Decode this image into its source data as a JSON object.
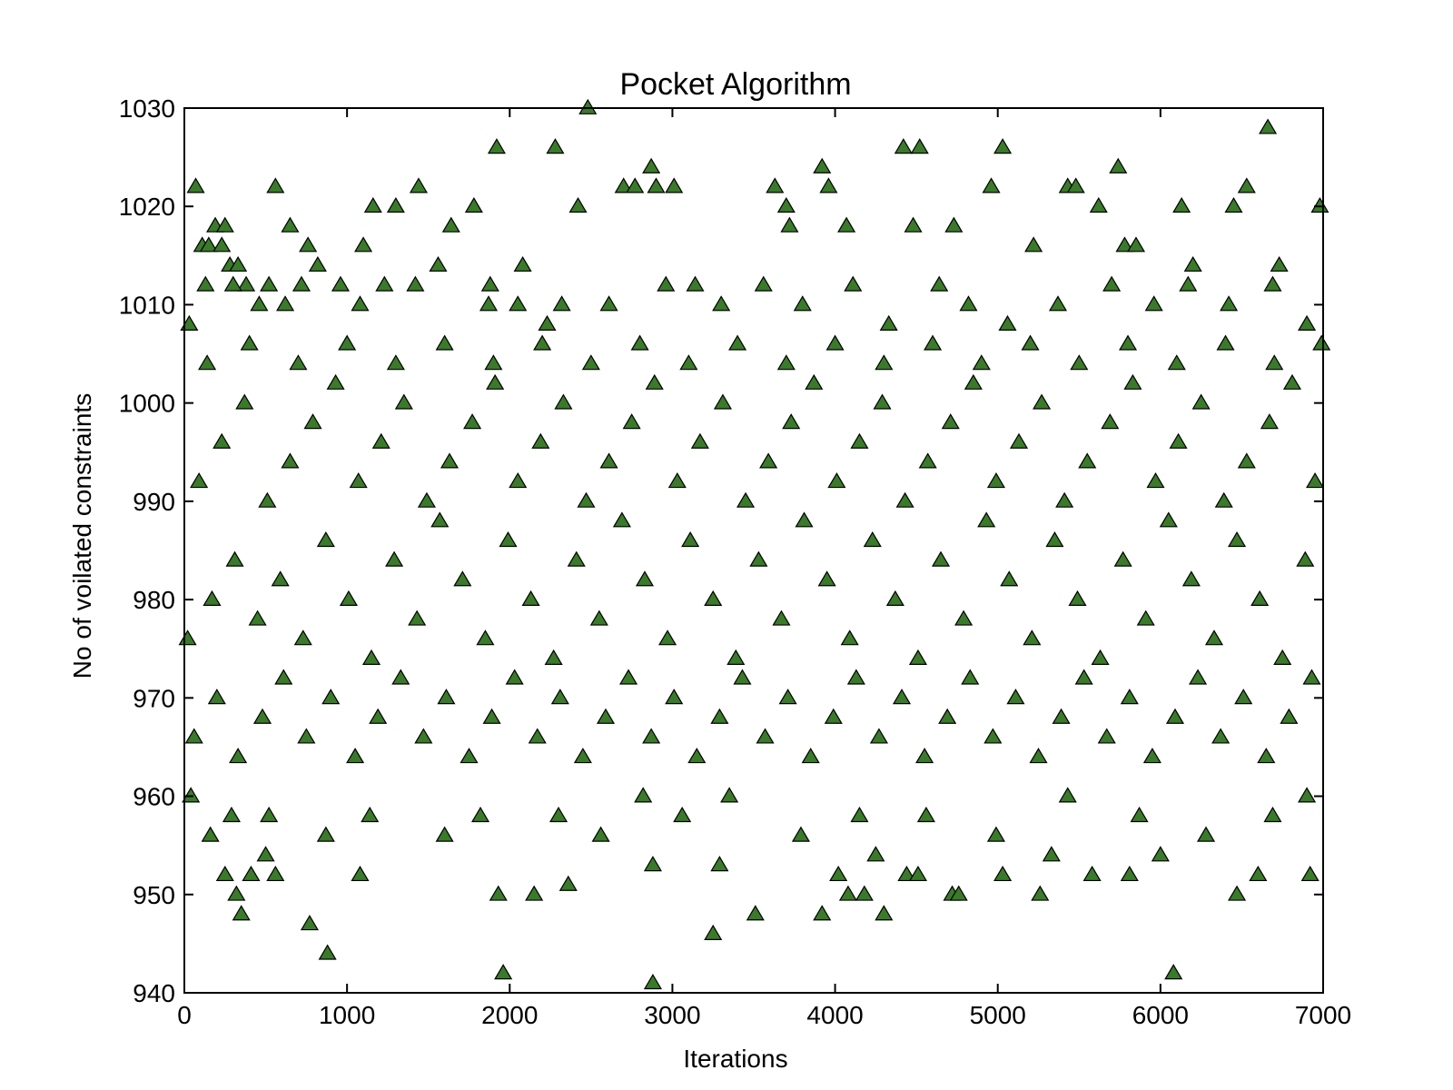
{
  "chart_data": {
    "type": "scatter",
    "title": "Pocket Algorithm",
    "xlabel": "Iterations",
    "ylabel": "No of voilated constraints",
    "xlim": [
      0,
      7000
    ],
    "ylim": [
      940,
      1030
    ],
    "xticks": [
      0,
      1000,
      2000,
      3000,
      4000,
      5000,
      6000,
      7000
    ],
    "yticks": [
      940,
      950,
      960,
      970,
      980,
      990,
      1000,
      1010,
      1020,
      1030
    ],
    "grid": false,
    "legend": "none",
    "marker": "triangle",
    "marker_color": "#3a7a2a",
    "marker_edge_color": "#000000",
    "series": [
      {
        "name": "",
        "points": [
          [
            70,
            1022
          ],
          [
            110,
            1016
          ],
          [
            150,
            1016
          ],
          [
            190,
            1018
          ],
          [
            230,
            1016
          ],
          [
            250,
            1018
          ],
          [
            280,
            1014
          ],
          [
            330,
            1014
          ],
          [
            380,
            1012
          ],
          [
            560,
            1022
          ],
          [
            650,
            1018
          ],
          [
            760,
            1016
          ],
          [
            1100,
            1016
          ],
          [
            1160,
            1020
          ],
          [
            1300,
            1020
          ],
          [
            1440,
            1022
          ],
          [
            1640,
            1018
          ],
          [
            1780,
            1020
          ],
          [
            1880,
            1012
          ],
          [
            1920,
            1026
          ],
          [
            2080,
            1014
          ],
          [
            2280,
            1026
          ],
          [
            2420,
            1020
          ],
          [
            2480,
            1030
          ],
          [
            2700,
            1022
          ],
          [
            2770,
            1022
          ],
          [
            2870,
            1024
          ],
          [
            2900,
            1022
          ],
          [
            3010,
            1022
          ],
          [
            3630,
            1022
          ],
          [
            3700,
            1020
          ],
          [
            3720,
            1018
          ],
          [
            3920,
            1024
          ],
          [
            3960,
            1022
          ],
          [
            4070,
            1018
          ],
          [
            4420,
            1026
          ],
          [
            4480,
            1018
          ],
          [
            4520,
            1026
          ],
          [
            4730,
            1018
          ],
          [
            4960,
            1022
          ],
          [
            5030,
            1026
          ],
          [
            5220,
            1016
          ],
          [
            5430,
            1022
          ],
          [
            5480,
            1022
          ],
          [
            5620,
            1020
          ],
          [
            5740,
            1024
          ],
          [
            5780,
            1016
          ],
          [
            5850,
            1016
          ],
          [
            6130,
            1020
          ],
          [
            6200,
            1014
          ],
          [
            6450,
            1020
          ],
          [
            6530,
            1022
          ],
          [
            6660,
            1028
          ],
          [
            6730,
            1014
          ],
          [
            6980,
            1020
          ],
          [
            30,
            1008
          ],
          [
            130,
            1012
          ],
          [
            300,
            1012
          ],
          [
            460,
            1010
          ],
          [
            520,
            1012
          ],
          [
            620,
            1010
          ],
          [
            720,
            1012
          ],
          [
            820,
            1014
          ],
          [
            960,
            1012
          ],
          [
            1080,
            1010
          ],
          [
            1230,
            1012
          ],
          [
            1420,
            1012
          ],
          [
            1560,
            1014
          ],
          [
            1870,
            1010
          ],
          [
            2050,
            1010
          ],
          [
            2230,
            1008
          ],
          [
            2320,
            1010
          ],
          [
            2610,
            1010
          ],
          [
            2960,
            1012
          ],
          [
            3140,
            1012
          ],
          [
            3300,
            1010
          ],
          [
            3560,
            1012
          ],
          [
            3800,
            1010
          ],
          [
            4110,
            1012
          ],
          [
            4330,
            1008
          ],
          [
            4640,
            1012
          ],
          [
            4820,
            1010
          ],
          [
            5060,
            1008
          ],
          [
            5370,
            1010
          ],
          [
            5700,
            1012
          ],
          [
            5960,
            1010
          ],
          [
            6170,
            1012
          ],
          [
            6420,
            1010
          ],
          [
            6690,
            1012
          ],
          [
            6900,
            1008
          ],
          [
            250,
            952
          ],
          [
            320,
            950
          ],
          [
            350,
            948
          ],
          [
            410,
            952
          ],
          [
            500,
            954
          ],
          [
            560,
            952
          ],
          [
            770,
            947
          ],
          [
            880,
            944
          ],
          [
            1080,
            952
          ],
          [
            1930,
            950
          ],
          [
            1960,
            942
          ],
          [
            2150,
            950
          ],
          [
            2360,
            951
          ],
          [
            2880,
            941
          ],
          [
            2880,
            953
          ],
          [
            3250,
            946
          ],
          [
            3290,
            953
          ],
          [
            3510,
            948
          ],
          [
            3920,
            948
          ],
          [
            4020,
            952
          ],
          [
            4080,
            950
          ],
          [
            4180,
            950
          ],
          [
            4250,
            954
          ],
          [
            4300,
            948
          ],
          [
            4440,
            952
          ],
          [
            4510,
            952
          ],
          [
            4720,
            950
          ],
          [
            4760,
            950
          ],
          [
            5030,
            952
          ],
          [
            5260,
            950
          ],
          [
            5330,
            954
          ],
          [
            5580,
            952
          ],
          [
            5810,
            952
          ],
          [
            6000,
            954
          ],
          [
            6080,
            942
          ],
          [
            6470,
            950
          ],
          [
            6600,
            952
          ],
          [
            6920,
            952
          ],
          [
            40,
            960
          ],
          [
            160,
            956
          ],
          [
            290,
            958
          ],
          [
            520,
            958
          ],
          [
            870,
            956
          ],
          [
            1140,
            958
          ],
          [
            1600,
            956
          ],
          [
            1820,
            958
          ],
          [
            2300,
            958
          ],
          [
            2560,
            956
          ],
          [
            2820,
            960
          ],
          [
            3060,
            958
          ],
          [
            3350,
            960
          ],
          [
            3790,
            956
          ],
          [
            4150,
            958
          ],
          [
            4560,
            958
          ],
          [
            4990,
            956
          ],
          [
            5430,
            960
          ],
          [
            5870,
            958
          ],
          [
            6280,
            956
          ],
          [
            6690,
            958
          ],
          [
            6900,
            960
          ],
          [
            60,
            966
          ],
          [
            200,
            970
          ],
          [
            330,
            964
          ],
          [
            480,
            968
          ],
          [
            610,
            972
          ],
          [
            750,
            966
          ],
          [
            900,
            970
          ],
          [
            1050,
            964
          ],
          [
            1190,
            968
          ],
          [
            1330,
            972
          ],
          [
            1470,
            966
          ],
          [
            1610,
            970
          ],
          [
            1750,
            964
          ],
          [
            1890,
            968
          ],
          [
            2030,
            972
          ],
          [
            2170,
            966
          ],
          [
            2310,
            970
          ],
          [
            2450,
            964
          ],
          [
            2590,
            968
          ],
          [
            2730,
            972
          ],
          [
            2870,
            966
          ],
          [
            3010,
            970
          ],
          [
            3150,
            964
          ],
          [
            3290,
            968
          ],
          [
            3430,
            972
          ],
          [
            3570,
            966
          ],
          [
            3710,
            970
          ],
          [
            3850,
            964
          ],
          [
            3990,
            968
          ],
          [
            4130,
            972
          ],
          [
            4270,
            966
          ],
          [
            4410,
            970
          ],
          [
            4550,
            964
          ],
          [
            4690,
            968
          ],
          [
            4830,
            972
          ],
          [
            4970,
            966
          ],
          [
            5110,
            970
          ],
          [
            5250,
            964
          ],
          [
            5390,
            968
          ],
          [
            5530,
            972
          ],
          [
            5670,
            966
          ],
          [
            5810,
            970
          ],
          [
            5950,
            964
          ],
          [
            6090,
            968
          ],
          [
            6230,
            972
          ],
          [
            6370,
            966
          ],
          [
            6510,
            970
          ],
          [
            6650,
            964
          ],
          [
            6790,
            968
          ],
          [
            6930,
            972
          ],
          [
            20,
            976
          ],
          [
            170,
            980
          ],
          [
            310,
            984
          ],
          [
            450,
            978
          ],
          [
            590,
            982
          ],
          [
            730,
            976
          ],
          [
            870,
            986
          ],
          [
            1010,
            980
          ],
          [
            1150,
            974
          ],
          [
            1290,
            984
          ],
          [
            1430,
            978
          ],
          [
            1570,
            988
          ],
          [
            1710,
            982
          ],
          [
            1850,
            976
          ],
          [
            1990,
            986
          ],
          [
            2130,
            980
          ],
          [
            2270,
            974
          ],
          [
            2410,
            984
          ],
          [
            2550,
            978
          ],
          [
            2690,
            988
          ],
          [
            2830,
            982
          ],
          [
            2970,
            976
          ],
          [
            3110,
            986
          ],
          [
            3250,
            980
          ],
          [
            3390,
            974
          ],
          [
            3530,
            984
          ],
          [
            3670,
            978
          ],
          [
            3810,
            988
          ],
          [
            3950,
            982
          ],
          [
            4090,
            976
          ],
          [
            4230,
            986
          ],
          [
            4370,
            980
          ],
          [
            4510,
            974
          ],
          [
            4650,
            984
          ],
          [
            4790,
            978
          ],
          [
            4930,
            988
          ],
          [
            5070,
            982
          ],
          [
            5210,
            976
          ],
          [
            5350,
            986
          ],
          [
            5490,
            980
          ],
          [
            5630,
            974
          ],
          [
            5770,
            984
          ],
          [
            5910,
            978
          ],
          [
            6050,
            988
          ],
          [
            6190,
            982
          ],
          [
            6330,
            976
          ],
          [
            6470,
            986
          ],
          [
            6610,
            980
          ],
          [
            6750,
            974
          ],
          [
            6890,
            984
          ],
          [
            90,
            992
          ],
          [
            230,
            996
          ],
          [
            370,
            1000
          ],
          [
            510,
            990
          ],
          [
            650,
            994
          ],
          [
            790,
            998
          ],
          [
            930,
            1002
          ],
          [
            1070,
            992
          ],
          [
            1210,
            996
          ],
          [
            1350,
            1000
          ],
          [
            1490,
            990
          ],
          [
            1630,
            994
          ],
          [
            1770,
            998
          ],
          [
            1910,
            1002
          ],
          [
            2050,
            992
          ],
          [
            2190,
            996
          ],
          [
            2330,
            1000
          ],
          [
            2470,
            990
          ],
          [
            2610,
            994
          ],
          [
            2750,
            998
          ],
          [
            2890,
            1002
          ],
          [
            3030,
            992
          ],
          [
            3170,
            996
          ],
          [
            3310,
            1000
          ],
          [
            3450,
            990
          ],
          [
            3590,
            994
          ],
          [
            3730,
            998
          ],
          [
            3870,
            1002
          ],
          [
            4010,
            992
          ],
          [
            4150,
            996
          ],
          [
            4290,
            1000
          ],
          [
            4430,
            990
          ],
          [
            4570,
            994
          ],
          [
            4710,
            998
          ],
          [
            4850,
            1002
          ],
          [
            4990,
            992
          ],
          [
            5130,
            996
          ],
          [
            5270,
            1000
          ],
          [
            5410,
            990
          ],
          [
            5550,
            994
          ],
          [
            5690,
            998
          ],
          [
            5830,
            1002
          ],
          [
            5970,
            992
          ],
          [
            6110,
            996
          ],
          [
            6250,
            1000
          ],
          [
            6390,
            990
          ],
          [
            6530,
            994
          ],
          [
            6670,
            998
          ],
          [
            6810,
            1002
          ],
          [
            6950,
            992
          ],
          [
            140,
            1004
          ],
          [
            400,
            1006
          ],
          [
            700,
            1004
          ],
          [
            1000,
            1006
          ],
          [
            1300,
            1004
          ],
          [
            1600,
            1006
          ],
          [
            1900,
            1004
          ],
          [
            2200,
            1006
          ],
          [
            2500,
            1004
          ],
          [
            2800,
            1006
          ],
          [
            3100,
            1004
          ],
          [
            3400,
            1006
          ],
          [
            3700,
            1004
          ],
          [
            4000,
            1006
          ],
          [
            4300,
            1004
          ],
          [
            4600,
            1006
          ],
          [
            4900,
            1004
          ],
          [
            5200,
            1006
          ],
          [
            5500,
            1004
          ],
          [
            5800,
            1006
          ],
          [
            6100,
            1004
          ],
          [
            6400,
            1006
          ],
          [
            6700,
            1004
          ],
          [
            6990,
            1006
          ]
        ]
      }
    ]
  }
}
